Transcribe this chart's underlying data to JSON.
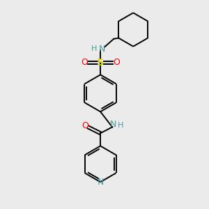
{
  "background_color": "#ebebeb",
  "bond_color": "#000000",
  "atom_colors": {
    "N": "#4a9a9a",
    "O": "#ff0000",
    "S": "#cccc00",
    "C": "#000000",
    "H": "#4a9a9a"
  },
  "figsize": [
    3.0,
    3.0
  ],
  "dpi": 100
}
